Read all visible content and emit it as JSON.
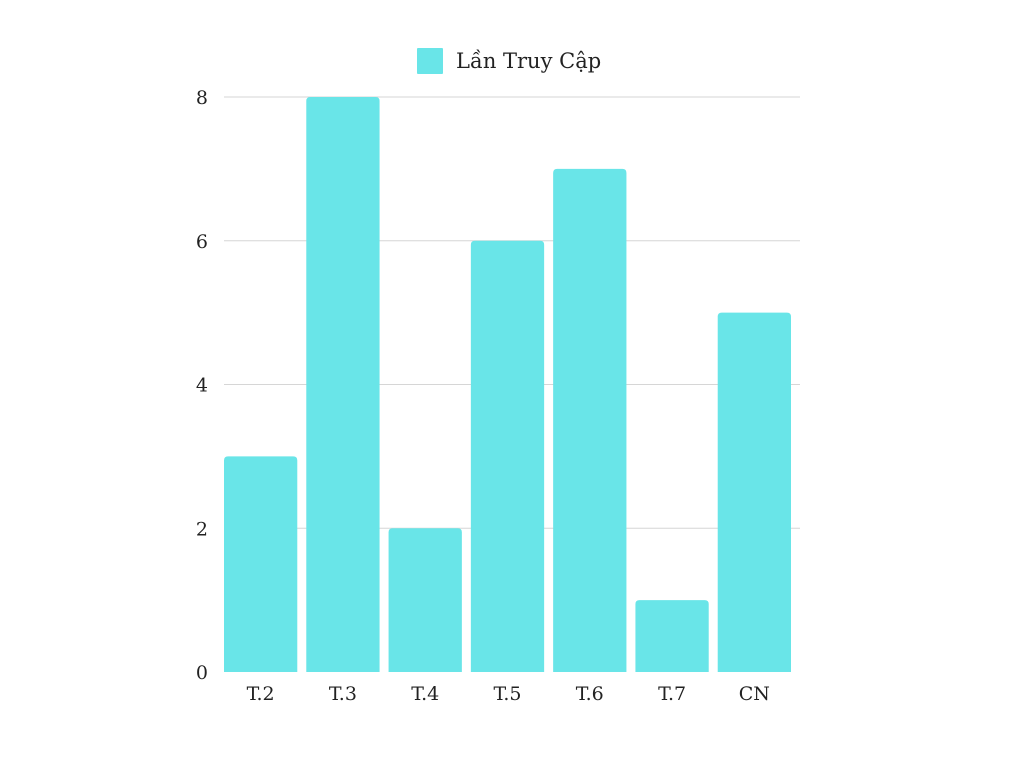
{
  "chart_data": {
    "type": "bar",
    "categories": [
      "T.2",
      "T.3",
      "T.4",
      "T.5",
      "T.6",
      "T.7",
      "CN"
    ],
    "series": [
      {
        "name": "Lần Truy Cập",
        "values": [
          3,
          8,
          2,
          6,
          7,
          1,
          5
        ]
      }
    ],
    "ylim": [
      0,
      8
    ],
    "yticks": [
      0,
      2,
      4,
      6,
      8
    ],
    "grid": true,
    "legend_position": "top-center",
    "colors": {
      "bar": "#69E5E8",
      "grid": "#D6D6D6"
    }
  }
}
